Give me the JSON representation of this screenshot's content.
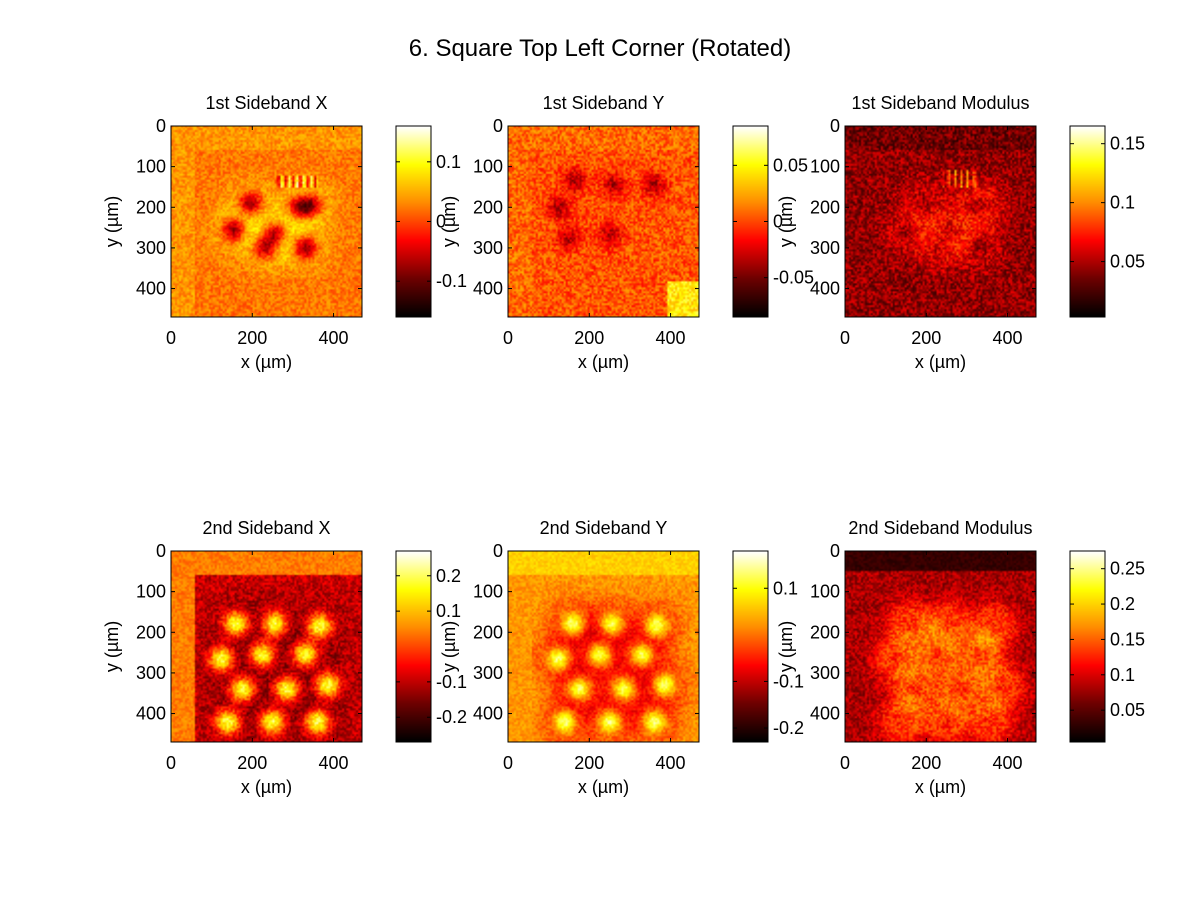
{
  "figure_title": "6. Square Top Left Corner (Rotated)",
  "colormap": "hot",
  "colormap_stops": [
    "#000000",
    "#6e0000",
    "#ff0000",
    "#ff8c00",
    "#ffff00",
    "#ffffff"
  ],
  "chart_data": [
    {
      "type": "heatmap",
      "title": "1st Sideband X",
      "xlabel": "x (µm)",
      "ylabel": "y (µm)",
      "xlim": [
        0,
        470
      ],
      "ylim": [
        0,
        470
      ],
      "y_reversed": true,
      "xticks": [
        0,
        200,
        400
      ],
      "yticks": [
        0,
        100,
        200,
        300,
        400
      ],
      "clim": [
        -0.16,
        0.16
      ],
      "cticks": [
        -0.1,
        0,
        0.1
      ],
      "tick_labels": {
        "x": [
          "0",
          "200",
          "400"
        ],
        "y": [
          "0",
          "100",
          "200",
          "300",
          "400"
        ],
        "c": [
          "-0.1",
          "0",
          "0.1"
        ]
      },
      "pattern": "x"
    },
    {
      "type": "heatmap",
      "title": "1st Sideband Y",
      "xlabel": "x (µm)",
      "ylabel": "y (µm)",
      "xlim": [
        0,
        470
      ],
      "ylim": [
        0,
        470
      ],
      "y_reversed": true,
      "xticks": [
        0,
        200,
        400
      ],
      "yticks": [
        0,
        100,
        200,
        300,
        400
      ],
      "clim": [
        -0.085,
        0.085
      ],
      "cticks": [
        -0.05,
        0,
        0.05
      ],
      "tick_labels": {
        "x": [
          "0",
          "200",
          "400"
        ],
        "y": [
          "0",
          "100",
          "200",
          "300",
          "400"
        ],
        "c": [
          "-0.05",
          "0",
          "0.05"
        ]
      },
      "pattern": "y"
    },
    {
      "type": "heatmap",
      "title": "1st Sideband Modulus",
      "xlabel": "x (µm)",
      "ylabel": "y (µm)",
      "xlim": [
        0,
        470
      ],
      "ylim": [
        0,
        470
      ],
      "y_reversed": true,
      "xticks": [
        0,
        200,
        400
      ],
      "yticks": [
        0,
        100,
        200,
        300,
        400
      ],
      "clim": [
        0.003,
        0.165
      ],
      "cticks": [
        0.05,
        0.1,
        0.15
      ],
      "tick_labels": {
        "x": [
          "0",
          "200",
          "400"
        ],
        "y": [
          "0",
          "100",
          "200",
          "300",
          "400"
        ],
        "c": [
          "0.05",
          "0.1",
          "0.15"
        ]
      },
      "pattern": "mod"
    },
    {
      "type": "heatmap",
      "title": "2nd Sideband X",
      "xlabel": "x (µm)",
      "ylabel": "y (µm)",
      "xlim": [
        0,
        470
      ],
      "ylim": [
        0,
        470
      ],
      "y_reversed": true,
      "xticks": [
        0,
        200,
        400
      ],
      "yticks": [
        0,
        100,
        200,
        300,
        400
      ],
      "clim": [
        -0.27,
        0.27
      ],
      "cticks": [
        -0.2,
        -0.1,
        0.1,
        0.2
      ],
      "tick_labels": {
        "x": [
          "0",
          "200",
          "400"
        ],
        "y": [
          "0",
          "100",
          "200",
          "300",
          "400"
        ],
        "c": [
          "-0.2",
          "-0.1",
          "0.1",
          "0.2"
        ]
      },
      "pattern": "x2"
    },
    {
      "type": "heatmap",
      "title": "2nd Sideband Y",
      "xlabel": "x (µm)",
      "ylabel": "y (µm)",
      "xlim": [
        0,
        470
      ],
      "ylim": [
        0,
        470
      ],
      "y_reversed": true,
      "xticks": [
        0,
        200,
        400
      ],
      "yticks": [
        0,
        100,
        200,
        300,
        400
      ],
      "clim": [
        -0.23,
        0.18
      ],
      "cticks": [
        -0.2,
        -0.1,
        0.1
      ],
      "tick_labels": {
        "x": [
          "0",
          "200",
          "400"
        ],
        "y": [
          "0",
          "100",
          "200",
          "300",
          "400"
        ],
        "c": [
          "-0.2",
          "-0.1",
          "0.1"
        ]
      },
      "pattern": "y2"
    },
    {
      "type": "heatmap",
      "title": "2nd Sideband Modulus",
      "xlabel": "x (µm)",
      "ylabel": "y (µm)",
      "xlim": [
        0,
        470
      ],
      "ylim": [
        0,
        470
      ],
      "y_reversed": true,
      "xticks": [
        0,
        200,
        400
      ],
      "yticks": [
        0,
        100,
        200,
        300,
        400
      ],
      "clim": [
        0.005,
        0.275
      ],
      "cticks": [
        0.05,
        0.1,
        0.15,
        0.2,
        0.25
      ],
      "tick_labels": {
        "x": [
          "0",
          "200",
          "400"
        ],
        "y": [
          "0",
          "100",
          "200",
          "300",
          "400"
        ],
        "c": [
          "0.05",
          "0.1",
          "0.15",
          "0.2",
          "0.25"
        ]
      },
      "pattern": "mod2"
    }
  ]
}
